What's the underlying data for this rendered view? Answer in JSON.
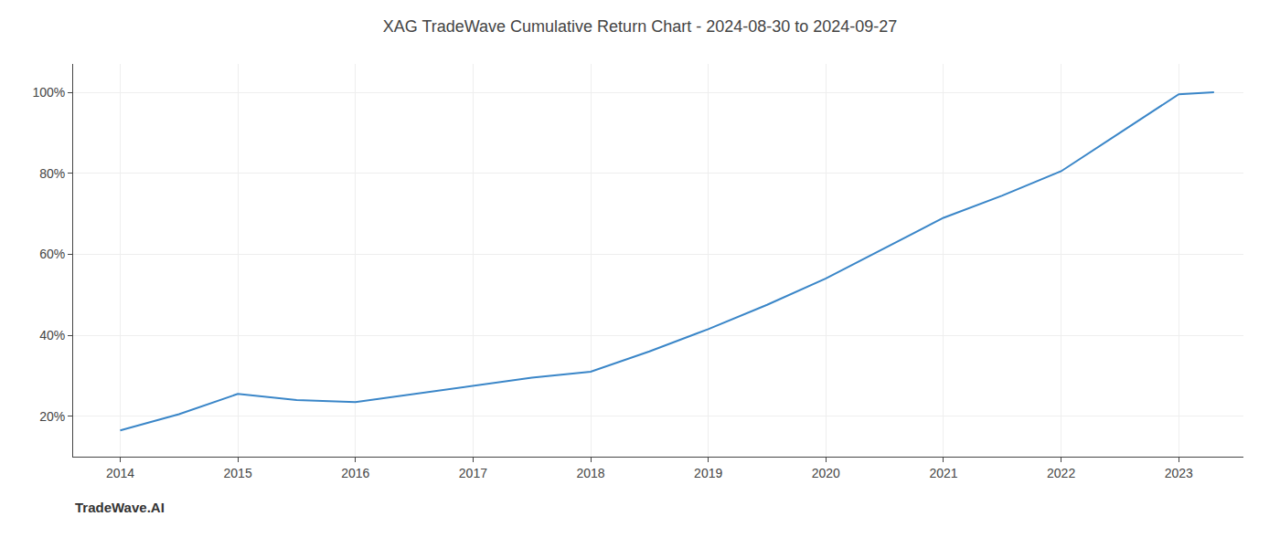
{
  "chart_data": {
    "type": "line",
    "title": "XAG TradeWave Cumulative Return Chart - 2024-08-30 to 2024-09-27",
    "annotations": [
      {
        "text": "TradeWave.AI"
      }
    ],
    "x": [
      2014,
      2014.5,
      2015,
      2015.5,
      2016,
      2016.5,
      2017,
      2017.5,
      2018,
      2018.5,
      2019,
      2019.5,
      2020,
      2020.5,
      2021,
      2021.5,
      2022,
      2022.5,
      2023,
      2023.3
    ],
    "values": [
      16.5,
      20.5,
      25.5,
      24.0,
      23.5,
      25.5,
      27.5,
      29.5,
      31.0,
      36.0,
      41.5,
      47.5,
      54.0,
      61.5,
      69.0,
      74.5,
      80.5,
      90.0,
      99.5,
      100.0
    ],
    "color": "#3a86c8",
    "xlim": [
      2013.6,
      2023.55
    ],
    "xticks": [
      2014,
      2015,
      2016,
      2017,
      2018,
      2019,
      2020,
      2021,
      2022,
      2023
    ],
    "ylim": [
      10,
      107
    ],
    "yticks": [
      {
        "value": 20,
        "label": "20%"
      },
      {
        "value": 40,
        "label": "40%"
      },
      {
        "value": 60,
        "label": "60%"
      },
      {
        "value": 80,
        "label": "80%"
      },
      {
        "value": 100,
        "label": "100%"
      }
    ],
    "grid": true
  }
}
